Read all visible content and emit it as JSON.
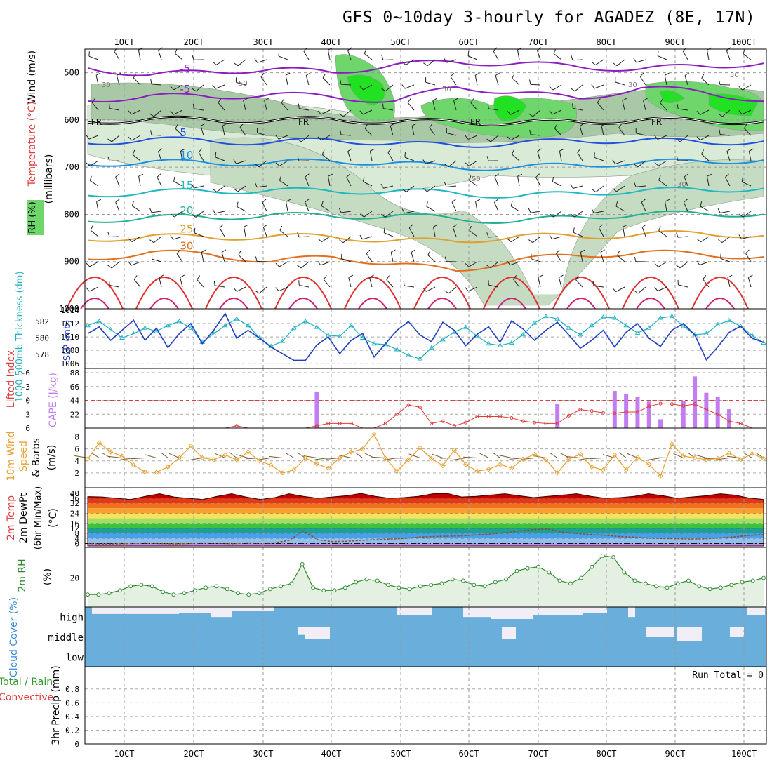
{
  "title": "GFS 0~10day 3-hourly for AGADEZ (8E, 17N)",
  "chart_data": [
    {
      "id": "upper_air",
      "type": "contour",
      "x_labels": [
        "1OCT",
        "2OCT",
        "3OCT",
        "4OCT",
        "5OCT",
        "6OCT",
        "7OCT",
        "8OCT",
        "9OCT",
        "10OCT"
      ],
      "ylabel": "(millibars)",
      "side_labels": [
        "Wind (m/s)",
        "Temperature (°C)",
        "RH (%)"
      ],
      "yticks": [
        500,
        600,
        700,
        800,
        900,
        1000
      ],
      "ylim": [
        450,
        1000
      ],
      "freezing_label": "FR",
      "rh_labels": [
        "30",
        "50",
        "50",
        "50",
        "30",
        "30",
        "50"
      ],
      "isotherms": [
        {
          "label": "-5",
          "color": "#8a1cc0",
          "values": [
            490,
            505,
            498,
            492,
            500,
            482,
            478,
            480,
            488,
            492,
            486,
            480
          ]
        },
        {
          "label": "-5",
          "color": "#8a1cc0",
          "values": [
            560,
            548,
            552,
            545,
            552,
            560,
            530,
            542,
            555,
            532,
            540,
            560
          ]
        },
        {
          "label": "0",
          "color": "#000000",
          "values": [
            605,
            598,
            600,
            602,
            598,
            605,
            603,
            606,
            604,
            600,
            602,
            603
          ]
        },
        {
          "label": "5",
          "color": "#1f4fe0",
          "values": [
            650,
            640,
            645,
            648,
            642,
            650,
            655,
            648,
            645,
            642,
            648,
            645
          ]
        },
        {
          "label": "10",
          "color": "#1a90e0",
          "values": [
            695,
            688,
            692,
            690,
            688,
            690,
            702,
            700,
            696,
            690,
            688,
            685
          ]
        },
        {
          "label": "15",
          "color": "#20b8c0",
          "values": [
            760,
            752,
            752,
            748,
            752,
            750,
            755,
            762,
            755,
            750,
            748,
            745
          ]
        },
        {
          "label": "20",
          "color": "#20b090",
          "values": [
            815,
            805,
            808,
            800,
            805,
            802,
            810,
            815,
            805,
            800,
            798,
            800
          ]
        },
        {
          "label": "25",
          "color": "#e0a030",
          "values": [
            855,
            845,
            850,
            846,
            848,
            855,
            858,
            845,
            848,
            842,
            840,
            845
          ]
        },
        {
          "label": "30",
          "color": "#e07020",
          "values": [
            895,
            880,
            885,
            900,
            890,
            905,
            920,
            895,
            888,
            880,
            885,
            890
          ]
        }
      ]
    },
    {
      "id": "thickness_slp",
      "type": "line",
      "left_label": "1000-500mb Thickness (dm)",
      "right_label": "SLP (mb)",
      "left_ticks": [
        "578",
        "580",
        "582"
      ],
      "right_ticks": [
        "1006",
        "1008",
        "1010",
        "1012",
        "1014"
      ],
      "series": [
        {
          "name": "Thickness",
          "color": "#20b0c0",
          "values": [
            581.5,
            582,
            581,
            580,
            580.5,
            581.2,
            580.8,
            581.5,
            582,
            581.2,
            579.5,
            580.5,
            581.5,
            582.3,
            581.5,
            580,
            579,
            579.6,
            581.2,
            582,
            581.3,
            580.3,
            580.2,
            581.5,
            580,
            579.3,
            579.2,
            578.6,
            577.9,
            577.5,
            578.8,
            579.8,
            580.7,
            581.3,
            580.2,
            579.3,
            579.1,
            579.4,
            580.4,
            581.8,
            582.6,
            582.3,
            581.2,
            580.4,
            581.5,
            582.5,
            582.4,
            581.5,
            580.6,
            581.2,
            582.4,
            582.6,
            581.4,
            580.4,
            580.5,
            581.6,
            582.1,
            581.4,
            580.3,
            579.4
          ]
        },
        {
          "name": "SLP",
          "color": "#1f40c0",
          "values": [
            1010.5,
            1011.5,
            1009.5,
            1011,
            1012.5,
            1009.5,
            1011.3,
            1008.4,
            1010.5,
            1012,
            1009,
            1011,
            1013.5,
            1009.8,
            1011,
            1009.8,
            1008.5,
            1007.5,
            1006.5,
            1006.5,
            1008.8,
            1010,
            1007.5,
            1009.5,
            1010.5,
            1007,
            1009,
            1011,
            1012.3,
            1010.3,
            1009.3,
            1012.2,
            1011,
            1008.7,
            1010.4,
            1011.5,
            1009.2,
            1012.4,
            1011.2,
            1009.5,
            1011,
            1012.2,
            1010.3,
            1008.3,
            1009.5,
            1011,
            1008.5,
            1010.7,
            1012,
            1009.8,
            1008.6,
            1011,
            1012,
            1010.3,
            1006.6,
            1008.5,
            1010.7,
            1011.6,
            1009.8,
            1009.2
          ]
        }
      ]
    },
    {
      "id": "cape_li",
      "type": "bar+line",
      "left_label": "Lifted Index",
      "right_label": "CAPE (J/kg)",
      "left_ticks": [
        "-6",
        "-3",
        "0",
        "3",
        "6"
      ],
      "right_ticks": [
        "22",
        "44",
        "66",
        "88"
      ],
      "cape": [
        0,
        0,
        0,
        0,
        0,
        0,
        0,
        0,
        0,
        0,
        0,
        0,
        0,
        0,
        0,
        0,
        0,
        0,
        0,
        0,
        58,
        0,
        0,
        0,
        0,
        0,
        0,
        0,
        0,
        0,
        0,
        0,
        0,
        0,
        0,
        0,
        0,
        0,
        0,
        0,
        0,
        38,
        0,
        0,
        0,
        0,
        59,
        54,
        49,
        42,
        14,
        0,
        43,
        82,
        56,
        50,
        30,
        0,
        0,
        0
      ],
      "lifted_index": [
        7.5,
        7.5,
        7.5,
        7.5,
        7.5,
        7.5,
        7.5,
        7.5,
        7.5,
        7.5,
        7.5,
        7.5,
        7.2,
        5.5,
        6.5,
        7.5,
        7.5,
        7.5,
        7.5,
        7.5,
        5.5,
        5,
        5,
        5,
        6,
        6,
        5,
        3,
        1,
        1.5,
        5,
        4.5,
        5.5,
        4.8,
        3.5,
        3.5,
        3.5,
        3.8,
        4.5,
        4.8,
        5,
        5,
        3.3,
        2,
        2.3,
        2.7,
        2.8,
        2.5,
        2.5,
        1.3,
        0.7,
        0.8,
        1.2,
        0.8,
        2,
        3,
        4.5,
        5,
        6.5,
        7
      ]
    },
    {
      "id": "wind10m",
      "type": "line",
      "left_label": "10m Wind Speed & Barbs (m/s)",
      "yticks": [
        "2",
        "4",
        "6",
        "8"
      ],
      "values": [
        4.3,
        7,
        5.5,
        4.8,
        3.3,
        2.2,
        2.1,
        3,
        4.5,
        6.5,
        4.5,
        4.2,
        5,
        4.2,
        5.5,
        4,
        3.3,
        2,
        2.5,
        4.5,
        3.5,
        2.8,
        4.5,
        5.5,
        6,
        8.5,
        4.4,
        2.3,
        4.2,
        6.2,
        4.4,
        3.2,
        5.8,
        3.4,
        2.3,
        2.6,
        3.4,
        2.8,
        4.3,
        5.1,
        4.2,
        2,
        4.3,
        5.1,
        3,
        2.5,
        5,
        2.5,
        4.6,
        3.4,
        1.5,
        6.8,
        4.8,
        4.5,
        4.2,
        4.4,
        5.3,
        4.2,
        5.2,
        4.4
      ]
    },
    {
      "id": "temp2m",
      "type": "area",
      "left_label": "2m Temp 2m DewPt (6hr Min/Max) (°C)",
      "yticks": [
        "0",
        "4",
        "8",
        "12",
        "16",
        "24",
        "32",
        "36",
        "40"
      ],
      "max_temp": [
        37.3,
        37,
        36,
        35,
        37.5,
        39.5,
        37,
        36,
        35,
        37.5,
        39.5,
        37,
        35,
        36.5,
        39.5,
        37.5,
        36,
        37,
        38,
        39.8,
        37.5,
        36,
        36.5,
        37.5,
        39.5,
        39.8,
        37,
        37.5,
        38.5,
        39.5,
        38,
        36.5,
        37.5,
        38.5,
        39.5,
        37.5,
        36,
        36.5,
        37.5,
        39.5,
        38,
        36,
        37,
        38,
        39.5,
        38.5,
        36.2,
        35
      ],
      "dew_point": [
        0,
        -0.5,
        -0.3,
        0,
        0.5,
        0,
        -0.3,
        0,
        0.5,
        0.3,
        -0.2,
        0.5,
        0.3,
        0.5,
        2.5,
        10,
        3,
        1.5,
        1.8,
        2.5,
        3,
        3.5,
        4,
        5,
        5.5,
        5.8,
        6,
        6.8,
        7.5,
        8.5,
        10,
        11,
        11.5,
        9,
        8,
        7,
        6.5,
        5.5,
        5,
        4.2,
        4,
        3.8,
        3.5,
        3.8,
        4.5,
        5.2,
        6.5,
        7
      ]
    },
    {
      "id": "rh2m",
      "type": "line",
      "left_label": "2m RH (%)",
      "yticks": [
        "20"
      ],
      "values": [
        8,
        8,
        9,
        11,
        14,
        15,
        14,
        10,
        8,
        9,
        11,
        13,
        14,
        12,
        9,
        8,
        9,
        12,
        14,
        16,
        30,
        13,
        11,
        11,
        13,
        17,
        19,
        18,
        15,
        13,
        12,
        14,
        15,
        16,
        19,
        18,
        15,
        14,
        17,
        19,
        25,
        27,
        28,
        24,
        18,
        16,
        20,
        28,
        36,
        35,
        24,
        18,
        16,
        14,
        13,
        16,
        18,
        14,
        12,
        13,
        15,
        17,
        18,
        20
      ]
    },
    {
      "id": "cloud",
      "type": "table",
      "left_label": "Cloud Cover (%)",
      "row_labels": [
        "high",
        "middle",
        "low"
      ]
    },
    {
      "id": "precip",
      "type": "bar",
      "left_label": "3hr Precip (mm)",
      "side_labels": [
        "Total / Rain",
        "Convective"
      ],
      "yticks": [
        "0",
        "0.2",
        "0.4",
        "0.6",
        "0.8"
      ],
      "run_total": "Run Total = 0",
      "values": []
    }
  ]
}
